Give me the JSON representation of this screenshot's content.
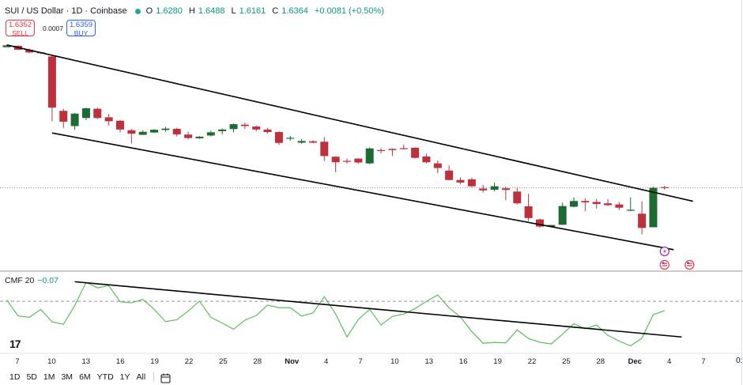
{
  "header": {
    "title": "SUI / US Dollar · 1D · Coinbase",
    "o_key": "O",
    "o": "1.6280",
    "h_key": "H",
    "h": "1.6488",
    "l_key": "L",
    "l": "1.6161",
    "c_key": "C",
    "c": "1.6364",
    "change": "+0.0081 (+0.50%)"
  },
  "trade": {
    "sell_price": "1.6352",
    "sell_label": "SELL",
    "spread": "0.0007",
    "buy_price": "1.6359",
    "buy_label": "BUY"
  },
  "cmf": {
    "label": "CMF 20",
    "value": "−0.07"
  },
  "ranges": [
    "1D",
    "5D",
    "1M",
    "3M",
    "6M",
    "YTD",
    "1Y",
    "All"
  ],
  "logo_text": "17",
  "axis_edge_label": "0:",
  "colors": {
    "up": "#1b6b33",
    "down": "#c0303c",
    "cmf_line": "#5cbf5c",
    "trendline": "#000000"
  },
  "chart_data": [
    {
      "type": "candlestick",
      "title": "SUI / US Dollar · 1D · Coinbase",
      "x_tick_labels": [
        "7",
        "10",
        "13",
        "16",
        "19",
        "22",
        "25",
        "28",
        "Nov",
        "4",
        "7",
        "10",
        "13",
        "16",
        "19",
        "22",
        "25",
        "28",
        "Dec",
        "4",
        "7"
      ],
      "candles": [
        {
          "o": 40.1,
          "h": 40.7,
          "c": 40.9,
          "l": 40.2
        },
        {
          "o": 40.7,
          "h": 40.9,
          "c": 39.0,
          "l": 38.8
        },
        {
          "o": 39.0,
          "h": 39.5,
          "c": 37.8,
          "l": 37.5
        },
        {
          "o": 37.9,
          "h": 38.1,
          "c": 37.6,
          "l": 37.2
        },
        {
          "o": 36.1,
          "h": 36.8,
          "c": 13.9,
          "l": 8.0
        },
        {
          "o": 12.5,
          "h": 13.4,
          "c": 7.8,
          "l": 5.1
        },
        {
          "o": 5.9,
          "h": 11.5,
          "c": 11.3,
          "l": 4.2
        },
        {
          "o": 9.4,
          "h": 13.9,
          "c": 13.6,
          "l": 8.5
        },
        {
          "o": 13.4,
          "h": 13.9,
          "c": 9.4,
          "l": 8.9
        },
        {
          "o": 9.7,
          "h": 11.2,
          "c": 8.0,
          "l": 6.1
        },
        {
          "o": 8.2,
          "h": 8.6,
          "c": 4.4,
          "l": 3.2
        },
        {
          "o": 4.1,
          "h": 4.6,
          "c": 2.6,
          "l": -1.7
        },
        {
          "o": 2.1,
          "h": 4.1,
          "c": 3.4,
          "l": 2.0
        },
        {
          "o": 3.1,
          "h": 4.6,
          "c": 4.3,
          "l": 2.9
        },
        {
          "o": 4.2,
          "h": 5.6,
          "c": 4.8,
          "l": 3.4
        },
        {
          "o": 4.7,
          "h": 5.1,
          "c": 2.3,
          "l": 1.4
        },
        {
          "o": 2.2,
          "h": 3.4,
          "c": 0.7,
          "l": 0.1
        },
        {
          "o": 0.6,
          "h": 1.5,
          "c": 1.3,
          "l": 0.4
        },
        {
          "o": 1.8,
          "h": 3.9,
          "c": 3.2,
          "l": 1.4
        },
        {
          "o": 3.7,
          "h": 4.9,
          "c": 4.4,
          "l": 2.3
        },
        {
          "o": 4.6,
          "h": 7.0,
          "c": 6.7,
          "l": 3.2
        },
        {
          "o": 6.5,
          "h": 7.4,
          "c": 5.9,
          "l": 4.7
        },
        {
          "o": 5.7,
          "h": 6.1,
          "c": 4.4,
          "l": 3.6
        },
        {
          "o": 4.4,
          "h": 5.1,
          "c": 3.3,
          "l": 2.6
        },
        {
          "o": 3.3,
          "h": 3.6,
          "c": -1.4,
          "l": -2.2
        },
        {
          "o": 0.6,
          "h": 1.6,
          "c": 0.8,
          "l": -0.4
        },
        {
          "o": -1.3,
          "h": 0.3,
          "c": -0.6,
          "l": -1.8
        },
        {
          "o": -0.7,
          "h": -0.3,
          "c": -1.3,
          "l": -1.5
        },
        {
          "o": -0.9,
          "h": 1.1,
          "c": -7.1,
          "l": -9.2
        },
        {
          "o": -7.4,
          "h": -7.2,
          "c": -9.8,
          "l": -14.1
        },
        {
          "o": -9.2,
          "h": -8.2,
          "c": -9.6,
          "l": -10.4
        },
        {
          "o": -8.2,
          "h": -8.1,
          "c": -9.9,
          "l": -10.5
        },
        {
          "o": -10.3,
          "h": -3.3,
          "c": -3.8,
          "l": -10.6
        },
        {
          "o": -4.5,
          "h": -3.7,
          "c": -4.7,
          "l": -6.0
        },
        {
          "o": -4.0,
          "h": -3.8,
          "c": -4.5,
          "l": -7.1
        },
        {
          "o": -3.7,
          "h": -2.2,
          "c": -3.8,
          "l": -4.2
        },
        {
          "o": -3.5,
          "h": -3.3,
          "c": -7.9,
          "l": -8.2
        },
        {
          "o": -7.3,
          "h": -6.1,
          "c": -9.8,
          "l": -10.3
        },
        {
          "o": -10.3,
          "h": -9.0,
          "c": -12.3,
          "l": -14.5
        },
        {
          "o": -13.4,
          "h": -11.2,
          "c": -17.5,
          "l": -17.7
        },
        {
          "o": -17.5,
          "h": -16.4,
          "c": -18.6,
          "l": -19.3
        },
        {
          "o": -17.2,
          "h": -16.5,
          "c": -20.2,
          "l": -20.7
        },
        {
          "o": -21.2,
          "h": -19.6,
          "c": -22.0,
          "l": -22.9
        },
        {
          "o": -21.7,
          "h": -18.6,
          "c": -20.2,
          "l": -22.4
        },
        {
          "o": -21.1,
          "h": -20.4,
          "c": -21.8,
          "l": -26.2
        },
        {
          "o": -22.5,
          "h": -20.8,
          "c": -27.6,
          "l": -28.1
        },
        {
          "o": -28.9,
          "h": -23.5,
          "c": -34.0,
          "l": -35.3
        },
        {
          "o": -34.6,
          "h": -34.2,
          "c": -37.7,
          "l": -38.3
        },
        {
          "o": -37.7,
          "h": -37.5,
          "c": -37.0,
          "l": -37.5
        },
        {
          "o": -36.9,
          "h": -27.3,
          "c": -28.8,
          "l": -37.0
        },
        {
          "o": -29.1,
          "h": -25.0,
          "c": -26.6,
          "l": -29.4
        },
        {
          "o": -26.6,
          "h": -25.4,
          "c": -27.2,
          "l": -31.0
        },
        {
          "o": -27.0,
          "h": -25.7,
          "c": -27.9,
          "l": -29.9
        },
        {
          "o": -27.6,
          "h": -25.9,
          "c": -28.4,
          "l": -28.8
        },
        {
          "o": -28.1,
          "h": -27.0,
          "c": -29.5,
          "l": -30.5
        },
        {
          "o": -30.5,
          "h": -25.0,
          "c": -30.4,
          "l": -31.1
        },
        {
          "o": -32.1,
          "h": -26.7,
          "c": -38.3,
          "l": -41.1
        },
        {
          "o": -38.0,
          "h": -20.4,
          "c": -20.9,
          "l": -37.8
        },
        {
          "o": -20.6,
          "h": -20.0,
          "c": -20.8,
          "l": -21.7
        }
      ],
      "trendlines": [
        {
          "name": "upper",
          "from": {
            "bar": 0,
            "y": 41.1
          },
          "to": {
            "bar": 60.5,
            "y": -26.7
          }
        },
        {
          "name": "lower",
          "from": {
            "bar": 4,
            "y": 2.9
          },
          "to": {
            "bar": 58.8,
            "y": -47.7
          }
        }
      ],
      "horizontal_line": {
        "y": -20.8,
        "style": "dotted"
      },
      "ylim": [
        -56,
        52
      ],
      "grid": false
    },
    {
      "type": "line",
      "title": "CMF 20",
      "series": [
        {
          "values": [
            0.7,
            -8.4,
            -9.2,
            -4.7,
            -11.8,
            -13.2,
            -2.5,
            10.9,
            7.7,
            8.9,
            -0.3,
            -0.9,
            1.1,
            -4.6,
            -11.7,
            -10.6,
            -5.6,
            0.1,
            -9.3,
            -12.5,
            -16.1,
            -10.8,
            -8.2,
            -2.2,
            -3.7,
            -3.7,
            -8.5,
            -6.7,
            2.6,
            -7.3,
            -20.5,
            -10.5,
            -4.6,
            -13.6,
            -8.7,
            -7.3,
            -4.2,
            -0.1,
            3.6,
            -3.8,
            -9.0,
            -17.4,
            -24.1,
            -23.6,
            -23.9,
            -16.4,
            -21.4,
            -23.5,
            -24.5,
            -18.9,
            -12.9,
            -15.8,
            -13.6,
            -19.6,
            -22.9,
            -25.6,
            -21.2,
            -7.7,
            -5.4
          ]
        }
      ],
      "trendline": {
        "from": {
          "bar": 6,
          "y": 11.2
        },
        "to": {
          "bar": 59.5,
          "y": -20.5
        }
      },
      "zero_line": true,
      "ylim": [
        -29,
        15
      ]
    }
  ]
}
